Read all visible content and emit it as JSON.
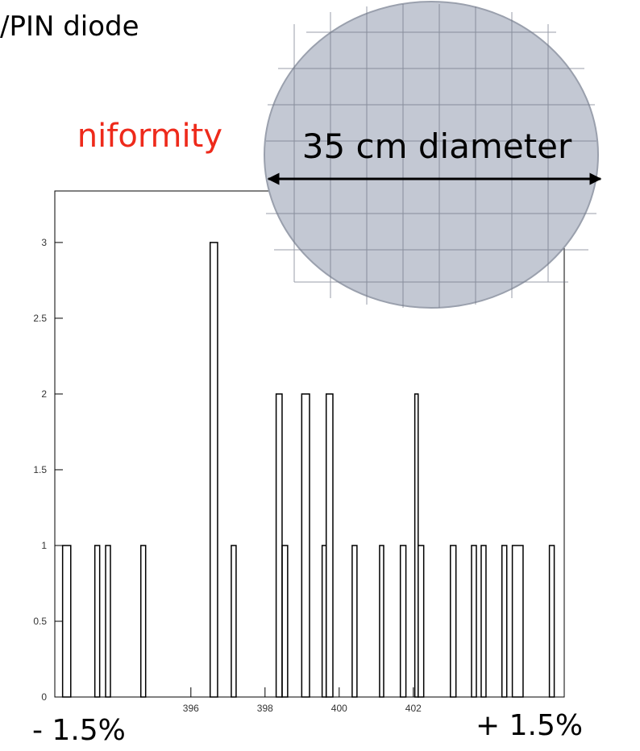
{
  "chart_data": {
    "type": "histogram",
    "annotations": [
      "/PIN diode",
      "niformity",
      "35 cm diameter",
      "- 1.5%",
      "+ 1.5%"
    ],
    "bins": [
      392.54,
      392.76,
      393.41,
      393.54,
      393.7,
      393.83,
      394.65,
      394.78,
      396.52,
      396.72,
      397.09,
      397.22,
      398.3,
      398.46,
      398.61,
      398.99,
      399.2,
      399.54,
      399.65,
      399.83,
      400.35,
      400.48,
      401.09,
      401.2,
      401.65,
      401.8,
      402.04,
      402.13,
      402.28,
      403.0,
      403.15,
      403.57,
      403.7,
      403.83,
      403.96,
      404.39,
      404.52,
      404.67,
      404.96,
      405.67,
      405.8
    ],
    "values": [
      1,
      0,
      1,
      0,
      1,
      0,
      1,
      0,
      3,
      0,
      1,
      0,
      2,
      1,
      0,
      2,
      0,
      1,
      2,
      0,
      1,
      0,
      1,
      0,
      1,
      0,
      2,
      1,
      0,
      1,
      0,
      1,
      0,
      1,
      0,
      1,
      0,
      1,
      0,
      1
    ],
    "color": "#000000",
    "xlim": [
      392.33,
      406.07
    ],
    "ylim": [
      0,
      3.34
    ],
    "xticks": [
      396,
      398,
      400,
      402
    ],
    "yticks": [
      0,
      0.5,
      1,
      1.5,
      2,
      2.5,
      3
    ]
  }
}
